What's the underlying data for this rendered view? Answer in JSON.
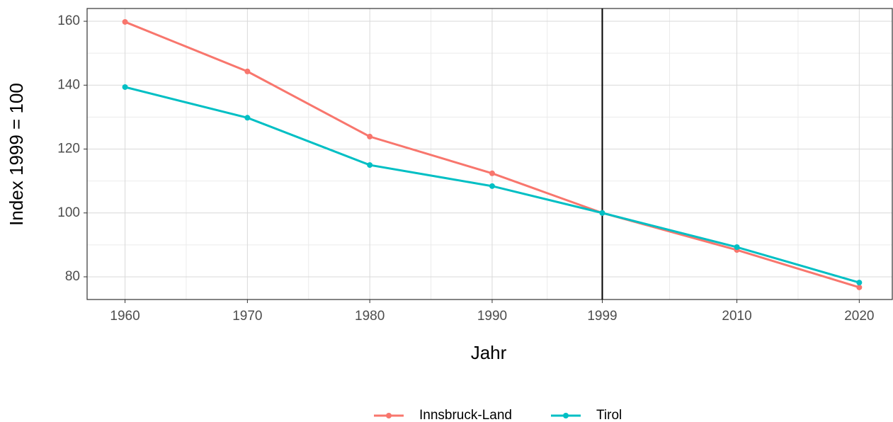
{
  "chart_data": {
    "type": "line",
    "x": [
      1960,
      1970,
      1980,
      1990,
      1999,
      2010,
      2020
    ],
    "series": [
      {
        "name": "Innsbruck-Land",
        "color": "#F8766D",
        "values": [
          159.8,
          144.3,
          123.9,
          112.4,
          100,
          88.4,
          76.7
        ]
      },
      {
        "name": "Tirol",
        "color": "#00BFC4",
        "values": [
          139.4,
          129.8,
          115.0,
          108.4,
          100,
          89.3,
          78.2
        ]
      }
    ],
    "xlabel": "Jahr",
    "ylabel": "Index 1999 = 100",
    "xlim": [
      1956.9,
      2022.7
    ],
    "xticks": [
      1960,
      1970,
      1980,
      1990,
      1999,
      2010,
      2020
    ],
    "ylim": [
      72.9,
      164
    ],
    "yticks": [
      80,
      100,
      120,
      140,
      160
    ],
    "vline": 1999,
    "grid": true,
    "legend": "bottom"
  }
}
